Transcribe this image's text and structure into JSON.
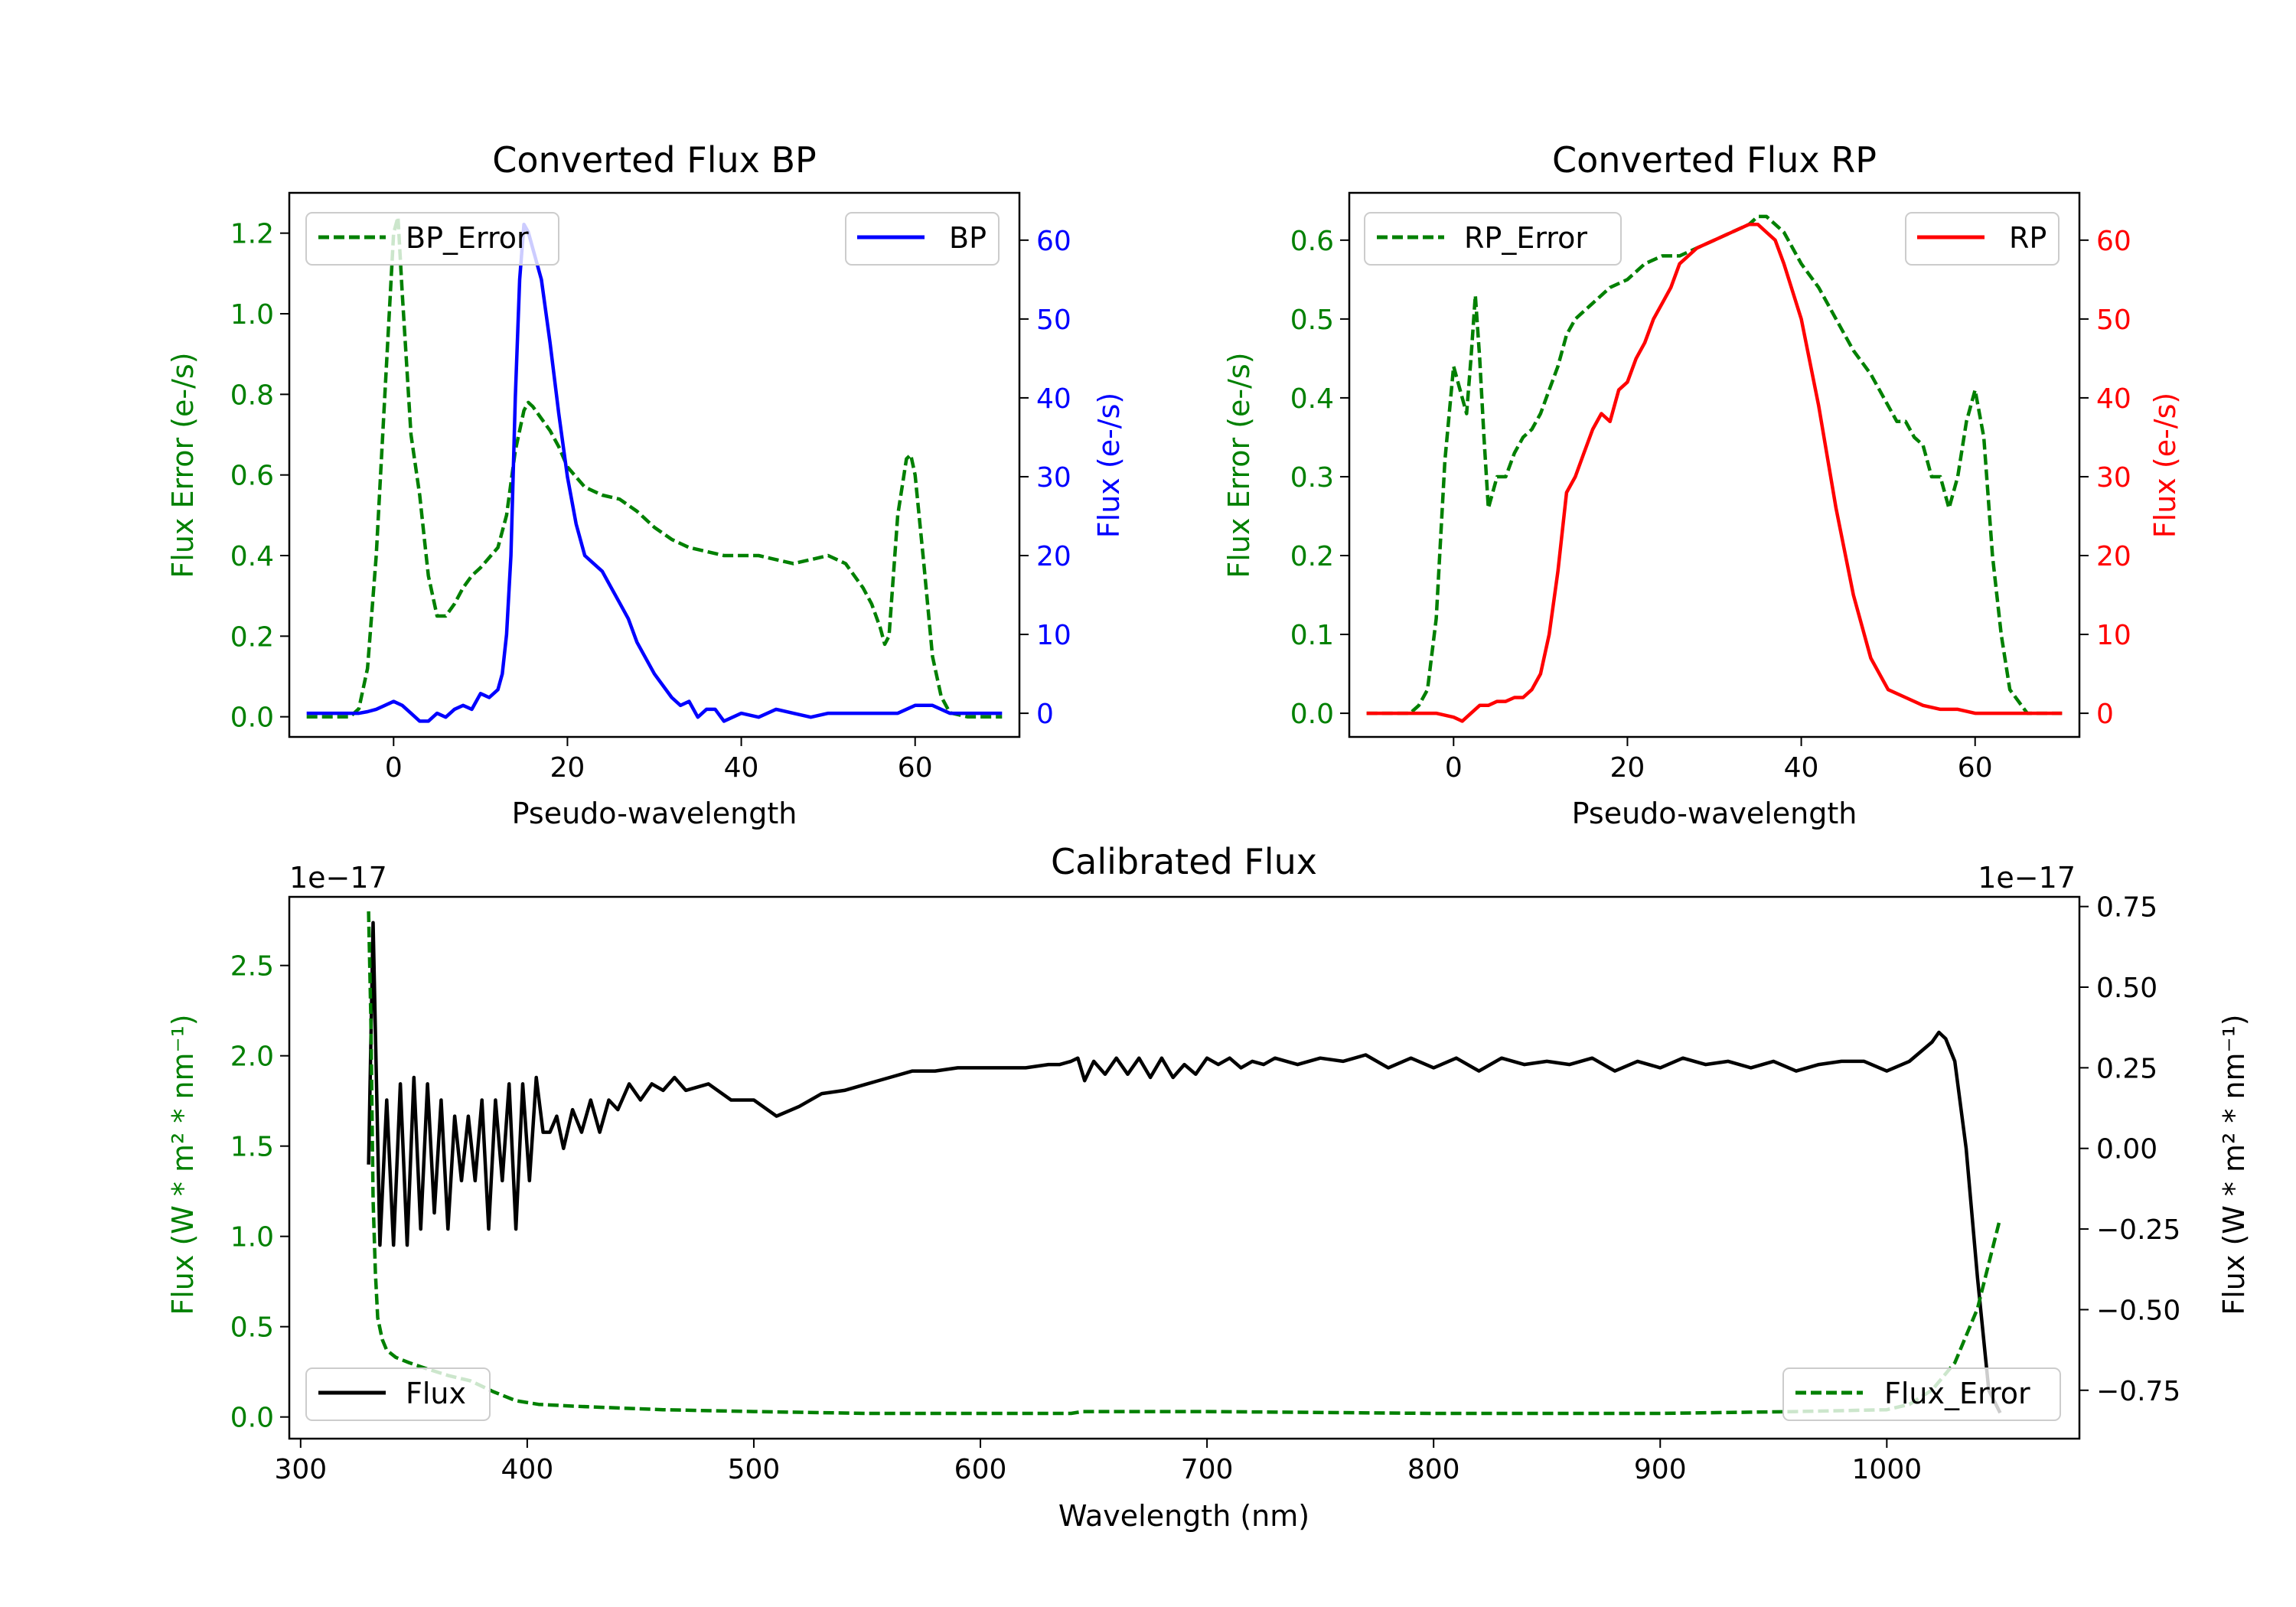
{
  "chart_data": [
    {
      "type": "line",
      "title": "Converted Flux BP",
      "xlabel": "Pseudo-wavelength",
      "ylabel_left": "Flux Error (e-/s)",
      "ylabel_right": "Flux (e-/s)",
      "xlim": [
        -12,
        72
      ],
      "ylim_left": [
        -0.05,
        1.3
      ],
      "ylim_right": [
        -3,
        66
      ],
      "xticks": [
        0,
        20,
        40,
        60
      ],
      "yticks_left": [
        "0.0",
        "0.2",
        "0.4",
        "0.6",
        "0.8",
        "1.0",
        "1.2"
      ],
      "yticks_right": [
        "0",
        "10",
        "20",
        "30",
        "40",
        "50",
        "60"
      ],
      "colors": {
        "left_axis": "#008000",
        "right_axis": "#0000ff"
      },
      "series": [
        {
          "name": "BP_Error",
          "axis": "left",
          "color": "#008000",
          "style": "dashed",
          "legend": "top-left",
          "x": [
            -10,
            -5,
            -4,
            -3,
            -2,
            -1,
            0,
            0.5,
            1,
            2,
            3,
            3.5,
            4,
            5,
            6,
            7,
            8,
            9,
            10,
            12,
            13,
            14,
            15,
            15.5,
            16,
            17,
            18,
            19,
            20,
            22,
            24,
            26,
            28,
            30,
            32,
            34,
            36,
            38,
            40,
            42,
            44,
            46,
            48,
            50,
            52,
            54,
            55,
            56,
            56.5,
            57,
            57.5,
            58,
            59,
            59.5,
            60,
            61,
            62,
            63,
            64,
            66,
            70
          ],
          "y": [
            0,
            0,
            0.02,
            0.12,
            0.4,
            0.8,
            1.2,
            1.24,
            1.05,
            0.7,
            0.55,
            0.45,
            0.35,
            0.25,
            0.25,
            0.28,
            0.32,
            0.35,
            0.37,
            0.42,
            0.5,
            0.66,
            0.76,
            0.78,
            0.77,
            0.74,
            0.71,
            0.67,
            0.62,
            0.57,
            0.55,
            0.54,
            0.51,
            0.47,
            0.44,
            0.42,
            0.41,
            0.4,
            0.4,
            0.4,
            0.39,
            0.38,
            0.39,
            0.4,
            0.38,
            0.32,
            0.28,
            0.22,
            0.18,
            0.2,
            0.35,
            0.5,
            0.64,
            0.65,
            0.6,
            0.38,
            0.15,
            0.05,
            0.01,
            0,
            0
          ]
        },
        {
          "name": "BP",
          "axis": "right",
          "color": "#0000ff",
          "style": "solid",
          "legend": "top-right",
          "x": [
            -10,
            -8,
            -6,
            -4,
            -3,
            -2,
            -1,
            0,
            1,
            2,
            3,
            4,
            5,
            6,
            7,
            8,
            9,
            10,
            11,
            12,
            12.5,
            13,
            13.5,
            14,
            14.5,
            15,
            15.5,
            16,
            17,
            18,
            19,
            20,
            21,
            22,
            23,
            24,
            25,
            26,
            27,
            28,
            30,
            32,
            33,
            34,
            35,
            36,
            37,
            38,
            40,
            42,
            44,
            46,
            48,
            50,
            52,
            54,
            56,
            58,
            60,
            62,
            64,
            66,
            70
          ],
          "y": [
            0,
            0,
            0,
            0,
            0.2,
            0.5,
            1,
            1.5,
            1,
            0,
            -1,
            -1,
            0,
            -0.5,
            0.5,
            1,
            0.5,
            2.5,
            2,
            3,
            5,
            10,
            20,
            40,
            55,
            62,
            61,
            59,
            55,
            47,
            38,
            30,
            24,
            20,
            19,
            18,
            16,
            14,
            12,
            9,
            5,
            2,
            1,
            1.5,
            -0.5,
            0.5,
            0.5,
            -1,
            0,
            -0.5,
            0.5,
            0,
            -0.5,
            0,
            0,
            0,
            0,
            0,
            1,
            1,
            0,
            0,
            0
          ]
        }
      ]
    },
    {
      "type": "line",
      "title": "Converted Flux RP",
      "xlabel": "Pseudo-wavelength",
      "ylabel_left": "Flux Error (e-/s)",
      "ylabel_right": "Flux (e-/s)",
      "xlim": [
        -12,
        72
      ],
      "ylim_left": [
        -0.03,
        0.66
      ],
      "ylim_right": [
        -3,
        66
      ],
      "xticks": [
        0,
        20,
        40,
        60
      ],
      "yticks_left": [
        "0.0",
        "0.1",
        "0.2",
        "0.3",
        "0.4",
        "0.5",
        "0.6"
      ],
      "yticks_right": [
        "0",
        "10",
        "20",
        "30",
        "40",
        "50",
        "60"
      ],
      "colors": {
        "left_axis": "#008000",
        "right_axis": "#ff0000"
      },
      "series": [
        {
          "name": "RP_Error",
          "axis": "left",
          "color": "#008000",
          "style": "dashed",
          "legend": "top-left",
          "x": [
            -10,
            -5,
            -4,
            -3,
            -2,
            -1,
            0,
            1,
            1.5,
            2,
            2.5,
            3,
            3.5,
            4,
            5,
            6,
            7,
            8,
            9,
            10,
            11,
            12,
            13,
            14,
            16,
            18,
            20,
            22,
            24,
            26,
            28,
            30,
            32,
            34,
            35,
            36,
            38,
            40,
            42,
            44,
            46,
            48,
            50,
            51,
            52,
            53,
            54,
            55,
            56,
            57,
            58,
            59,
            60,
            61,
            62,
            63,
            64,
            66,
            70
          ],
          "y": [
            0,
            0,
            0.01,
            0.03,
            0.12,
            0.32,
            0.44,
            0.4,
            0.38,
            0.45,
            0.53,
            0.45,
            0.35,
            0.26,
            0.3,
            0.3,
            0.33,
            0.35,
            0.36,
            0.38,
            0.41,
            0.44,
            0.48,
            0.5,
            0.52,
            0.54,
            0.55,
            0.57,
            0.58,
            0.58,
            0.59,
            0.6,
            0.61,
            0.62,
            0.63,
            0.63,
            0.61,
            0.57,
            0.54,
            0.5,
            0.46,
            0.43,
            0.39,
            0.37,
            0.37,
            0.35,
            0.34,
            0.3,
            0.3,
            0.26,
            0.3,
            0.37,
            0.41,
            0.35,
            0.2,
            0.1,
            0.03,
            0,
            0
          ]
        },
        {
          "name": "RP",
          "axis": "right",
          "color": "#ff0000",
          "style": "solid",
          "legend": "top-right",
          "x": [
            -10,
            -6,
            -4,
            -2,
            0,
            1,
            2,
            3,
            4,
            5,
            6,
            7,
            8,
            9,
            10,
            11,
            12,
            13,
            14,
            15,
            16,
            17,
            18,
            19,
            20,
            21,
            22,
            23,
            24,
            25,
            26,
            28,
            30,
            32,
            34,
            35,
            36,
            37,
            38,
            40,
            42,
            44,
            46,
            48,
            50,
            52,
            54,
            56,
            58,
            60,
            62,
            64,
            66,
            70
          ],
          "y": [
            0,
            0,
            0,
            0,
            -0.5,
            -1,
            0,
            1,
            1,
            1.5,
            1.5,
            2,
            2,
            3,
            5,
            10,
            18,
            28,
            30,
            33,
            36,
            38,
            37,
            41,
            42,
            45,
            47,
            50,
            52,
            54,
            57,
            59,
            60,
            61,
            62,
            62,
            61,
            60,
            57,
            50,
            39,
            26,
            15,
            7,
            3,
            2,
            1,
            0.5,
            0.5,
            0,
            0,
            0,
            0,
            0
          ]
        }
      ]
    },
    {
      "type": "line",
      "title": "Calibrated Flux",
      "xlabel": "Wavelength (nm)",
      "ylabel_left": "Flux (W * m² * nm⁻¹)",
      "ylabel_right": "Flux (W * m² * nm⁻¹)",
      "offset_left": "1e−17",
      "offset_right": "1e−17",
      "xlim": [
        295,
        1085
      ],
      "ylim_left": [
        -0.12,
        2.88
      ],
      "ylim_right": [
        -0.9,
        0.78
      ],
      "xticks": [
        "300",
        "400",
        "500",
        "600",
        "700",
        "800",
        "900",
        "1000"
      ],
      "yticks_left": [
        "0.0",
        "0.5",
        "1.0",
        "1.5",
        "2.0",
        "2.5"
      ],
      "yticks_right": [
        "−0.75",
        "−0.50",
        "−0.25",
        "0.00",
        "0.25",
        "0.50",
        "0.75"
      ],
      "colors": {
        "left_axis": "#008000",
        "right_axis": "#000000"
      },
      "series": [
        {
          "name": "Flux",
          "axis": "right",
          "color": "#000000",
          "style": "solid",
          "legend": "bottom-left",
          "x": [
            330,
            332,
            335,
            338,
            341,
            344,
            347,
            350,
            353,
            356,
            359,
            362,
            365,
            368,
            371,
            374,
            377,
            380,
            383,
            386,
            389,
            392,
            395,
            398,
            401,
            404,
            407,
            410,
            413,
            416,
            420,
            424,
            428,
            432,
            436,
            440,
            445,
            450,
            455,
            460,
            465,
            470,
            480,
            490,
            500,
            510,
            520,
            530,
            540,
            550,
            560,
            570,
            580,
            590,
            600,
            610,
            620,
            630,
            635,
            640,
            643,
            646,
            650,
            655,
            660,
            665,
            670,
            675,
            680,
            685,
            690,
            695,
            700,
            705,
            710,
            715,
            720,
            725,
            730,
            740,
            750,
            760,
            770,
            780,
            790,
            800,
            810,
            820,
            830,
            840,
            850,
            860,
            870,
            880,
            890,
            900,
            910,
            920,
            930,
            940,
            950,
            960,
            970,
            980,
            990,
            1000,
            1010,
            1020,
            1023,
            1026,
            1030,
            1035,
            1040,
            1045,
            1050
          ],
          "y": [
            -0.05,
            0.7,
            -0.3,
            0.15,
            -0.3,
            0.2,
            -0.3,
            0.22,
            -0.25,
            0.2,
            -0.2,
            0.15,
            -0.25,
            0.1,
            -0.1,
            0.1,
            -0.1,
            0.15,
            -0.25,
            0.15,
            -0.1,
            0.2,
            -0.25,
            0.2,
            -0.1,
            0.22,
            0.05,
            0.05,
            0.1,
            0.0,
            0.12,
            0.05,
            0.15,
            0.05,
            0.15,
            0.12,
            0.2,
            0.15,
            0.2,
            0.18,
            0.22,
            0.18,
            0.2,
            0.15,
            0.15,
            0.1,
            0.13,
            0.17,
            0.18,
            0.2,
            0.22,
            0.24,
            0.24,
            0.25,
            0.25,
            0.25,
            0.25,
            0.26,
            0.26,
            0.27,
            0.28,
            0.21,
            0.27,
            0.23,
            0.28,
            0.23,
            0.28,
            0.22,
            0.28,
            0.22,
            0.26,
            0.23,
            0.28,
            0.26,
            0.28,
            0.25,
            0.27,
            0.26,
            0.28,
            0.26,
            0.28,
            0.27,
            0.29,
            0.25,
            0.28,
            0.25,
            0.28,
            0.24,
            0.28,
            0.26,
            0.27,
            0.26,
            0.28,
            0.24,
            0.27,
            0.25,
            0.28,
            0.26,
            0.27,
            0.25,
            0.27,
            0.24,
            0.26,
            0.27,
            0.27,
            0.24,
            0.27,
            0.33,
            0.36,
            0.34,
            0.27,
            0.0,
            -0.4,
            -0.75,
            -0.82
          ]
        },
        {
          "name": "Flux_Error",
          "axis": "left",
          "color": "#008000",
          "style": "dashed",
          "legend": "bottom-right",
          "x": [
            330,
            331,
            332,
            333,
            334,
            336,
            338,
            342,
            348,
            355,
            365,
            375,
            385,
            395,
            405,
            420,
            440,
            460,
            500,
            550,
            600,
            640,
            645,
            700,
            800,
            900,
            960,
            1000,
            1010,
            1020,
            1030,
            1035,
            1040,
            1045,
            1050
          ],
          "y": [
            2.8,
            2.2,
            1.2,
            0.8,
            0.55,
            0.43,
            0.37,
            0.33,
            0.3,
            0.27,
            0.23,
            0.2,
            0.14,
            0.09,
            0.07,
            0.06,
            0.05,
            0.04,
            0.03,
            0.02,
            0.02,
            0.02,
            0.03,
            0.03,
            0.02,
            0.02,
            0.03,
            0.04,
            0.07,
            0.15,
            0.3,
            0.45,
            0.6,
            0.85,
            1.1
          ]
        }
      ]
    }
  ]
}
